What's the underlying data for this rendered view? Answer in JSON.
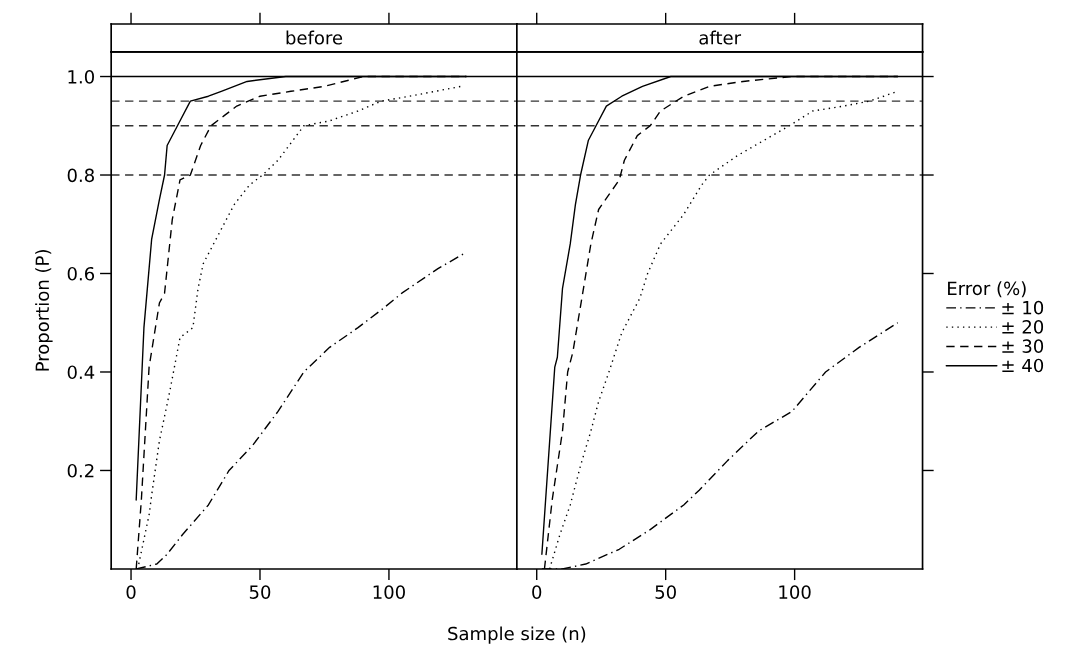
{
  "chart_data": [
    {
      "type": "line",
      "title": "before",
      "xlabel": "Sample size (n)",
      "ylabel": "Proportion (P)",
      "legend_title": "Error (%)",
      "legend": "right",
      "xlim": [
        -7.7,
        149.6
      ],
      "ylim": [
        0,
        1.05
      ],
      "xticks": [
        0,
        50,
        100
      ],
      "yticks": [
        0.2,
        0.4,
        0.6,
        0.8,
        {
          "value": 1.0,
          "label": "1.0"
        }
      ],
      "ref_lines": [
        {
          "axis": "y",
          "value": 0.8,
          "line_style": "dashed",
          "color": "#333333"
        },
        {
          "axis": "y",
          "value": 0.9,
          "line_style": "dashed",
          "color": "#333333"
        },
        {
          "axis": "y",
          "value": 0.95,
          "line_style": "dashed",
          "color": "#333333"
        },
        {
          "axis": "y",
          "value": 1.0,
          "line_style": "solid",
          "color": "#000000"
        }
      ],
      "series": [
        {
          "name": "± 10",
          "color": "#000000",
          "line_style": "dashdot",
          "x": [
            2,
            6,
            10,
            14,
            20,
            30,
            38,
            47,
            57,
            67,
            77,
            88,
            98,
            105,
            119,
            129
          ],
          "values": [
            0,
            0.005,
            0.01,
            0.03,
            0.07,
            0.13,
            0.2,
            0.25,
            0.32,
            0.4,
            0.45,
            0.49,
            0.53,
            0.56,
            0.61,
            0.64
          ]
        },
        {
          "name": "± 20",
          "color": "#000000",
          "line_style": "dotted",
          "x": [
            3,
            7,
            8,
            11,
            15,
            19,
            24,
            26,
            28,
            35,
            40,
            46,
            51,
            57,
            67,
            77,
            88,
            97,
            108,
            128
          ],
          "values": [
            0.01,
            0.11,
            0.15,
            0.26,
            0.36,
            0.47,
            0.49,
            0.57,
            0.62,
            0.69,
            0.74,
            0.78,
            0.8,
            0.83,
            0.9,
            0.91,
            0.93,
            0.95,
            0.96,
            0.98
          ]
        },
        {
          "name": "± 30",
          "color": "#000000",
          "line_style": "dashed",
          "x": [
            2,
            4,
            7,
            11,
            13,
            16,
            19,
            23,
            27,
            31,
            36,
            41,
            50,
            62,
            75,
            90,
            110,
            130
          ],
          "values": [
            0,
            0.14,
            0.41,
            0.54,
            0.56,
            0.71,
            0.79,
            0.8,
            0.86,
            0.9,
            0.92,
            0.94,
            0.96,
            0.97,
            0.98,
            1.0,
            1.0,
            1.0
          ]
        },
        {
          "name": "± 40",
          "color": "#000000",
          "line_style": "solid",
          "x": [
            2,
            5,
            8,
            11,
            13,
            14,
            18,
            23,
            30,
            35,
            45,
            60,
            80,
            130
          ],
          "values": [
            0.14,
            0.49,
            0.67,
            0.75,
            0.8,
            0.86,
            0.9,
            0.95,
            0.96,
            0.97,
            0.99,
            1.0,
            1.0,
            1.0
          ]
        }
      ]
    },
    {
      "type": "line",
      "title": "after",
      "tick_labels": "x",
      "xlim": [
        -7.7,
        149.6
      ],
      "ylim": [
        0,
        1.05
      ],
      "xticks": [
        0,
        50,
        100
      ],
      "yticks": [
        0.2,
        0.4,
        0.6,
        0.8,
        1.0
      ],
      "ref_lines": [
        {
          "axis": "y",
          "value": 0.8,
          "line_style": "dashed",
          "color": "#333333"
        },
        {
          "axis": "y",
          "value": 0.9,
          "line_style": "dashed",
          "color": "#333333"
        },
        {
          "axis": "y",
          "value": 0.95,
          "line_style": "dashed",
          "color": "#333333"
        },
        {
          "axis": "y",
          "value": 1.0,
          "line_style": "solid",
          "color": "#000000"
        }
      ],
      "series": [
        {
          "color": "#000000",
          "line_style": "dashdot",
          "x": [
            2,
            10,
            19,
            32,
            44,
            57,
            63,
            74,
            86,
            99,
            112,
            125,
            140
          ],
          "values": [
            0,
            0.0,
            0.01,
            0.04,
            0.08,
            0.13,
            0.16,
            0.22,
            0.28,
            0.32,
            0.4,
            0.45,
            0.5
          ]
        },
        {
          "color": "#000000",
          "line_style": "dotted",
          "x": [
            5,
            9,
            13,
            17,
            21,
            24,
            28,
            33,
            40,
            43,
            48,
            57,
            64,
            67,
            78,
            88,
            98,
            107,
            119,
            129,
            140
          ],
          "values": [
            0,
            0.07,
            0.13,
            0.21,
            0.28,
            0.34,
            0.4,
            0.48,
            0.55,
            0.6,
            0.66,
            0.72,
            0.78,
            0.8,
            0.84,
            0.87,
            0.9,
            0.93,
            0.94,
            0.95,
            0.97
          ]
        },
        {
          "color": "#000000",
          "line_style": "dashed",
          "x": [
            3,
            6,
            10,
            12,
            14,
            21,
            24,
            28,
            32,
            34,
            39,
            44,
            48,
            57,
            67,
            80,
            99,
            120,
            140
          ],
          "values": [
            0,
            0.14,
            0.28,
            0.4,
            0.44,
            0.66,
            0.73,
            0.76,
            0.79,
            0.83,
            0.88,
            0.9,
            0.93,
            0.96,
            0.98,
            0.99,
            1.0,
            1.0,
            1.0
          ]
        },
        {
          "color": "#000000",
          "line_style": "solid",
          "x": [
            2,
            7,
            8,
            10,
            13,
            15,
            17,
            20,
            23,
            27,
            33,
            41,
            52,
            70,
            140
          ],
          "values": [
            0.03,
            0.41,
            0.43,
            0.57,
            0.66,
            0.74,
            0.8,
            0.87,
            0.9,
            0.94,
            0.96,
            0.98,
            1.0,
            1.0,
            1.0
          ]
        }
      ]
    }
  ]
}
